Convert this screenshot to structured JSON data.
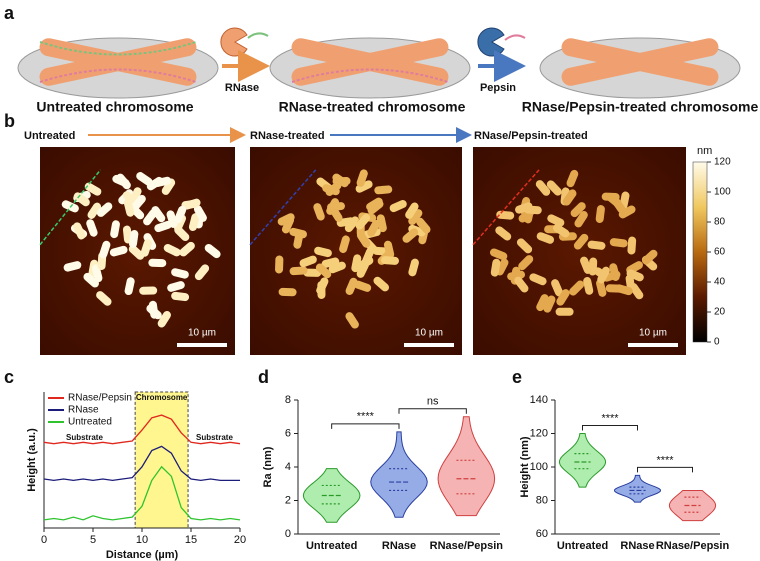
{
  "panel_labels": [
    "a",
    "b",
    "c",
    "d",
    "e"
  ],
  "panel_a": {
    "stages": [
      "Untreated chromosome",
      "RNase-treated chromosome",
      "RNase/Pepsin-treated chromosome"
    ],
    "enzymes": [
      "RNase",
      "Pepsin"
    ]
  },
  "panel_b": {
    "stages": [
      "Untreated",
      "RNase-treated",
      "RNase/Pepsin-treated"
    ],
    "scale_bar": "10 µm",
    "colorbar": {
      "unit": "nm",
      "lim": [
        0,
        120
      ],
      "ticks": [
        0,
        20,
        40,
        60,
        80,
        100,
        120
      ]
    }
  },
  "chart_data": [
    {
      "type": "line",
      "xlabel": "Distance (µm)",
      "ylabel": "Height (a.u.)",
      "xlim": [
        0,
        20
      ],
      "xticks": [
        0,
        5,
        10,
        15,
        20
      ],
      "ylim": [
        0,
        10
      ],
      "x": [
        0,
        1,
        2,
        3,
        4,
        5,
        6,
        7,
        8,
        9,
        10,
        11,
        12,
        13,
        14,
        15,
        16,
        17,
        18,
        19,
        20
      ],
      "highlight": {
        "label": "Chromosome",
        "range": [
          9.3,
          14.7
        ]
      },
      "annotations": [
        "Substrate",
        "Substrate"
      ],
      "series": [
        {
          "name": "RNase/Pepsin",
          "color": "#e0281e",
          "values": [
            6.3,
            6.2,
            6.3,
            6.2,
            6.3,
            6.2,
            6.3,
            6.2,
            6.3,
            6.4,
            7.2,
            8.1,
            8.3,
            8.0,
            7.0,
            6.3,
            6.2,
            6.3,
            6.2,
            6.3,
            6.2
          ]
        },
        {
          "name": "RNase",
          "color": "#1c1c7a",
          "values": [
            3.6,
            3.5,
            3.6,
            3.5,
            3.6,
            3.5,
            3.6,
            3.5,
            3.6,
            3.7,
            4.5,
            5.7,
            6.0,
            5.5,
            4.2,
            3.6,
            3.5,
            3.6,
            3.5,
            3.5,
            3.5
          ]
        },
        {
          "name": "Untreated",
          "color": "#2fc42f",
          "values": [
            0.6,
            0.7,
            0.6,
            0.8,
            0.6,
            0.9,
            0.7,
            0.6,
            0.7,
            0.8,
            1.6,
            3.5,
            4.5,
            3.8,
            1.5,
            0.7,
            0.6,
            0.7,
            0.6,
            0.7,
            0.6
          ]
        }
      ]
    },
    {
      "type": "violin",
      "ylabel": "Ra (nm)",
      "ylim": [
        0,
        8
      ],
      "yticks": [
        0,
        2,
        4,
        6,
        8
      ],
      "categories": [
        "Untreated",
        "RNase",
        "RNase/Pepsin"
      ],
      "fills": [
        "#9be89b",
        "#7c97e0",
        "#f2a0a0"
      ],
      "strokes": [
        "#2a9a2a",
        "#2a3fa0",
        "#d04040"
      ],
      "stats": [
        {
          "min": 0.7,
          "q1": 1.8,
          "median": 2.3,
          "q3": 2.9,
          "max": 3.9
        },
        {
          "min": 1.0,
          "q1": 2.6,
          "median": 3.1,
          "q3": 3.9,
          "max": 6.1
        },
        {
          "min": 1.1,
          "q1": 2.4,
          "median": 3.3,
          "q3": 4.4,
          "max": 7.0
        }
      ],
      "comparisons": [
        {
          "pair": [
            0,
            1
          ],
          "label": "****"
        },
        {
          "pair": [
            1,
            2
          ],
          "label": "ns"
        }
      ]
    },
    {
      "type": "violin",
      "ylabel": "Height (nm)",
      "ylim": [
        60,
        140
      ],
      "yticks": [
        60,
        80,
        100,
        120,
        140
      ],
      "categories": [
        "Untreated",
        "RNase",
        "RNase/Pepsin"
      ],
      "fills": [
        "#9be89b",
        "#7c97e0",
        "#f2a0a0"
      ],
      "strokes": [
        "#2a9a2a",
        "#2a3fa0",
        "#d04040"
      ],
      "stats": [
        {
          "min": 88,
          "q1": 99,
          "median": 103,
          "q3": 108,
          "max": 120
        },
        {
          "min": 79,
          "q1": 84,
          "median": 86,
          "q3": 88,
          "max": 95
        },
        {
          "min": 68,
          "q1": 73,
          "median": 77,
          "q3": 82,
          "max": 86
        }
      ],
      "comparisons": [
        {
          "pair": [
            0,
            1
          ],
          "label": "****"
        },
        {
          "pair": [
            1,
            2
          ],
          "label": "****"
        }
      ]
    }
  ]
}
